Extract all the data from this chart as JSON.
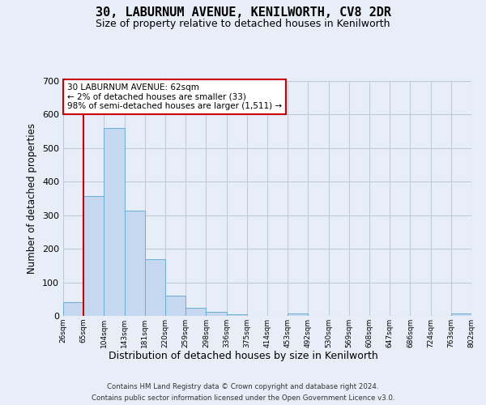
{
  "title": "30, LABURNUM AVENUE, KENILWORTH, CV8 2DR",
  "subtitle": "Size of property relative to detached houses in Kenilworth",
  "xlabel": "Distribution of detached houses by size in Kenilworth",
  "ylabel": "Number of detached properties",
  "bar_values": [
    40,
    358,
    560,
    315,
    168,
    60,
    25,
    12,
    5,
    0,
    0,
    7,
    0,
    0,
    0,
    0,
    0,
    0,
    0,
    7
  ],
  "bin_labels": [
    "26sqm",
    "65sqm",
    "104sqm",
    "143sqm",
    "181sqm",
    "220sqm",
    "259sqm",
    "298sqm",
    "336sqm",
    "375sqm",
    "414sqm",
    "453sqm",
    "492sqm",
    "530sqm",
    "569sqm",
    "608sqm",
    "647sqm",
    "686sqm",
    "724sqm",
    "763sqm",
    "802sqm"
  ],
  "bar_color": "#c5d8f0",
  "bar_edge_color": "#6baed6",
  "red_line_x": 1,
  "annotation_line1": "30 LABURNUM AVENUE: 62sqm",
  "annotation_line2": "← 2% of detached houses are smaller (33)",
  "annotation_line3": "98% of semi-detached houses are larger (1,511) →",
  "annotation_box_facecolor": "#ffffff",
  "annotation_box_edgecolor": "#cc0000",
  "footer_line1": "Contains HM Land Registry data © Crown copyright and database right 2024.",
  "footer_line2": "Contains public sector information licensed under the Open Government Licence v3.0.",
  "background_color": "#e8eef8",
  "ylim": [
    0,
    700
  ],
  "yticks": [
    0,
    100,
    200,
    300,
    400,
    500,
    600,
    700
  ],
  "grid_color": "#c0cad8",
  "title_fontsize": 11,
  "subtitle_fontsize": 9
}
